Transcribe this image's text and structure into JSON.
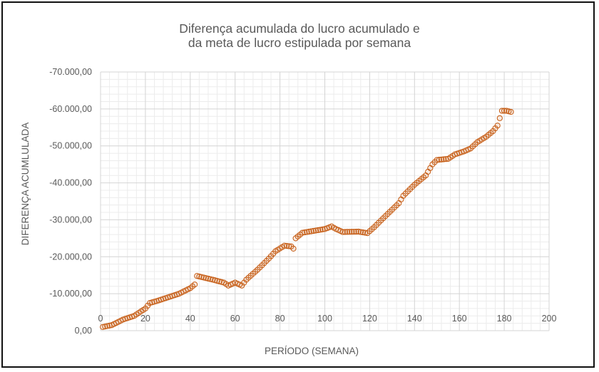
{
  "chart_data": {
    "type": "scatter",
    "title_line1": "Diferença acumulada do lucro acumulado e",
    "title_line2": "da meta de lucro estipulada por semana",
    "xlabel": "PERÍODO (SEMANA)",
    "ylabel": "DIFERENÇA ACUMLULADA",
    "xlim": [
      0,
      200
    ],
    "ylim": [
      0,
      -70000
    ],
    "x_ticks": [
      0,
      20,
      40,
      60,
      80,
      100,
      120,
      140,
      160,
      180,
      200
    ],
    "x_tick_labels": [
      "0",
      "20",
      "40",
      "60",
      "80",
      "100",
      "120",
      "140",
      "160",
      "180",
      "200"
    ],
    "y_ticks": [
      0,
      -10000,
      -20000,
      -30000,
      -40000,
      -50000,
      -60000,
      -70000
    ],
    "y_tick_labels": [
      "0,00",
      "-10.000,00",
      "-20.000,00",
      "-30.000,00",
      "-40.000,00",
      "-50.000,00",
      "-60.000,00",
      "-70.000,00"
    ],
    "y_axis_reversed": true,
    "grid": true,
    "minor_grid": true,
    "marker": "hollow-circle",
    "marker_color": "#C55A11",
    "series": [
      {
        "key_points": [
          [
            1,
            -1000
          ],
          [
            5,
            -1500
          ],
          [
            10,
            -3000
          ],
          [
            15,
            -4000
          ],
          [
            20,
            -6000
          ],
          [
            22,
            -7500
          ],
          [
            25,
            -8000
          ],
          [
            30,
            -9000
          ],
          [
            35,
            -10000
          ],
          [
            40,
            -11500
          ],
          [
            42,
            -12500
          ],
          [
            43,
            -14800
          ],
          [
            50,
            -13800
          ],
          [
            55,
            -13000
          ],
          [
            57,
            -12200
          ],
          [
            60,
            -13000
          ],
          [
            63,
            -12200
          ],
          [
            65,
            -13800
          ],
          [
            70,
            -16500
          ],
          [
            75,
            -19500
          ],
          [
            78,
            -21500
          ],
          [
            82,
            -23000
          ],
          [
            85,
            -22800
          ],
          [
            86,
            -22200
          ],
          [
            87,
            -25000
          ],
          [
            90,
            -26500
          ],
          [
            95,
            -27000
          ],
          [
            100,
            -27500
          ],
          [
            103,
            -28200
          ],
          [
            105,
            -27500
          ],
          [
            108,
            -26700
          ],
          [
            115,
            -26800
          ],
          [
            119,
            -26400
          ],
          [
            122,
            -28000
          ],
          [
            127,
            -31000
          ],
          [
            133,
            -34500
          ],
          [
            135,
            -36500
          ],
          [
            140,
            -39500
          ],
          [
            145,
            -42000
          ],
          [
            148,
            -45000
          ],
          [
            150,
            -46200
          ],
          [
            155,
            -46500
          ],
          [
            158,
            -47700
          ],
          [
            162,
            -48500
          ],
          [
            165,
            -49300
          ],
          [
            168,
            -51000
          ],
          [
            172,
            -52500
          ],
          [
            175,
            -54000
          ],
          [
            177,
            -55500
          ],
          [
            178,
            -57500
          ],
          [
            179,
            -59500
          ],
          [
            181,
            -59500
          ],
          [
            183,
            -59200
          ]
        ]
      }
    ]
  }
}
